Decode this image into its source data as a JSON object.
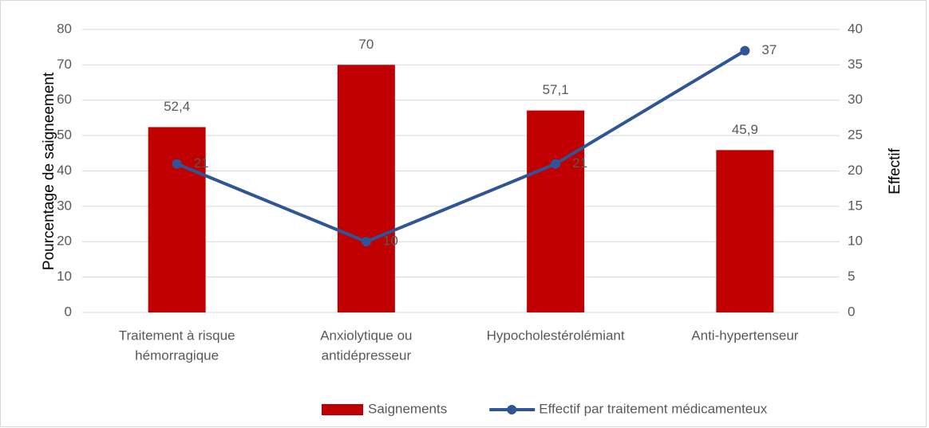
{
  "chart_data": {
    "type": "bar_line",
    "categories": [
      [
        "Traitement à risque",
        "hémorragique"
      ],
      [
        "Anxiolytique ou",
        "antidépresseur"
      ],
      [
        "Hypocholestérolémiant"
      ],
      [
        "Anti-hypertenseur"
      ]
    ],
    "series": [
      {
        "name": "Saignements",
        "type": "bar",
        "color": "#c00000",
        "values": [
          52.4,
          70,
          57.1,
          45.9
        ],
        "value_labels": [
          "52,4",
          "70",
          "57,1",
          "45,9"
        ]
      },
      {
        "name": "Effectif par traitement médicamenteux",
        "type": "line",
        "axis": "y2",
        "color": "#2f5597",
        "values": [
          21,
          10,
          21,
          37
        ]
      }
    ],
    "y_label": "Pourcentage de saigneement",
    "y2_label": "Effectif",
    "ylim": [
      0,
      80
    ],
    "yticks": [
      0,
      10,
      20,
      30,
      40,
      50,
      60,
      70,
      80
    ],
    "y2lim": [
      0,
      40
    ],
    "y2ticks": [
      0,
      5,
      10,
      15,
      20,
      25,
      30,
      35,
      40
    ],
    "grid": true,
    "legend": "bottom"
  }
}
